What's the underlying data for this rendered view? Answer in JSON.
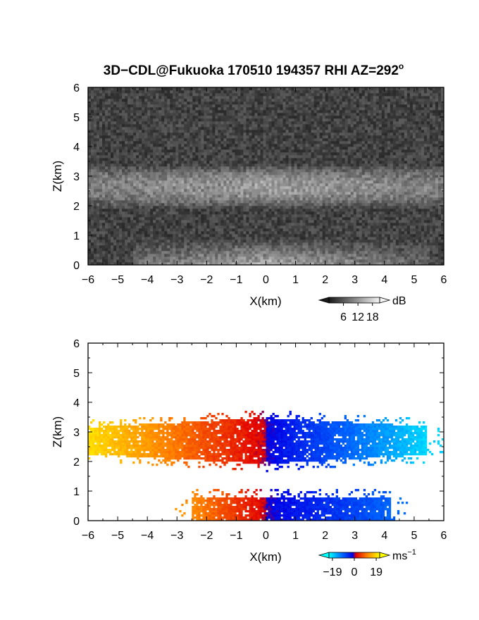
{
  "figure": {
    "title": "3D−CDL@Fukuoka 170510 194357 RHI AZ=292",
    "title_degree": "o"
  },
  "chart_data": [
    {
      "type": "heatmap",
      "panel": "top",
      "variable": "backscatter intensity",
      "xlabel": "X(km)",
      "ylabel": "Z(km)",
      "xlim": [
        -6,
        6
      ],
      "ylim": [
        0,
        6
      ],
      "xticks": [
        "−6",
        "−5",
        "−4",
        "−3",
        "−2",
        "−1",
        "0",
        "1",
        "2",
        "3",
        "4",
        "5",
        "6"
      ],
      "yticks": [
        "0",
        "1",
        "2",
        "3",
        "4",
        "5",
        "6"
      ],
      "colorbar": {
        "unit": "dB",
        "ticks": [
          "6",
          "12",
          "18"
        ],
        "tick_values": [
          6,
          12,
          18
        ],
        "range": [
          0,
          21
        ],
        "colormap": "grayscale"
      },
      "layers": [
        {
          "name": "upper echo layer",
          "z_bottom": 1.9,
          "z_top": 3.4,
          "x_extent": [
            -6,
            6
          ],
          "peak_dB": 14
        },
        {
          "name": "lower echo layer",
          "z_bottom": 0.0,
          "z_top": 0.9,
          "x_extent": [
            -4.5,
            5.5
          ],
          "peak_dB": 16
        }
      ],
      "background_dB": 4
    },
    {
      "type": "heatmap",
      "panel": "bottom",
      "variable": "Doppler radial velocity",
      "xlabel": "X(km)",
      "ylabel": "Z(km)",
      "xlim": [
        -6,
        6
      ],
      "ylim": [
        0,
        6
      ],
      "xticks": [
        "−6",
        "−5",
        "−4",
        "−3",
        "−2",
        "−1",
        "0",
        "1",
        "2",
        "3",
        "4",
        "5",
        "6"
      ],
      "yticks": [
        "0",
        "1",
        "2",
        "3",
        "4",
        "5",
        "6"
      ],
      "colorbar": {
        "unit": "ms",
        "unit_exponent": "−1",
        "ticks": [
          "−19",
          "0",
          "19"
        ],
        "tick_values": [
          -19,
          0,
          19
        ],
        "range": [
          -22,
          22
        ],
        "colormap": "cyan-blue-red-yellow"
      },
      "layers": [
        {
          "name": "upper echo layer",
          "z_bottom": 2.1,
          "z_top": 3.3,
          "x_extent": [
            -6,
            5.4
          ],
          "velocity_at_x_min": 19,
          "velocity_at_x_max": -19
        },
        {
          "name": "lower echo layer",
          "z_bottom": 0.0,
          "z_top": 0.8,
          "x_extent": [
            -2.5,
            4.2
          ],
          "velocity_at_x_min": 12,
          "velocity_at_x_max": -10
        }
      ]
    }
  ]
}
